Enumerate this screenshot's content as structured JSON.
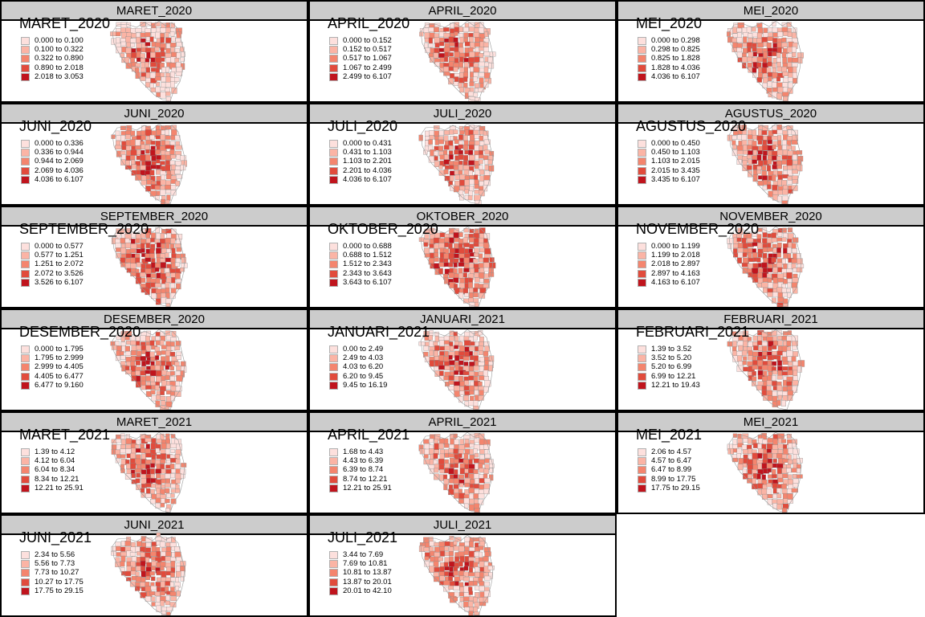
{
  "palette": [
    "#fde0dd",
    "#fbb4a5",
    "#f4856e",
    "#e14b3c",
    "#c0141d"
  ],
  "panels": [
    {
      "title": "MARET_2020",
      "map_title": "MARET_2020",
      "intensity": 0.3,
      "legend": [
        "0.000 to 0.100",
        "0.100 to 0.322",
        "0.322 to 0.890",
        "0.890 to 2.018",
        "2.018 to 3.053"
      ]
    },
    {
      "title": "APRIL_2020",
      "map_title": "APRIL_2020",
      "intensity": 0.42,
      "legend": [
        "0.000 to 0.152",
        "0.152 to 0.517",
        "0.517 to 1.067",
        "1.067 to 2.499",
        "2.499 to 6.107"
      ]
    },
    {
      "title": "MEI_2020",
      "map_title": "MEI_2020",
      "intensity": 0.4,
      "legend": [
        "0.000 to 0.298",
        "0.298 to 0.825",
        "0.825 to 1.828",
        "1.828 to 4.036",
        "4.036 to 6.107"
      ]
    },
    {
      "title": "JUNI_2020",
      "map_title": "JUNI_2020",
      "intensity": 0.42,
      "legend": [
        "0.000 to 0.336",
        "0.336 to 0.944",
        "0.944 to 2.069",
        "2.069 to 4.036",
        "4.036 to 6.107"
      ]
    },
    {
      "title": "JULI_2020",
      "map_title": "JULI_2020",
      "intensity": 0.4,
      "legend": [
        "0.000 to 0.431",
        "0.431 to 1.103",
        "1.103 to 2.201",
        "2.201 to 4.036",
        "4.036 to 6.107"
      ]
    },
    {
      "title": "AGUSTUS_2020",
      "map_title": "AGUSTUS_2020",
      "intensity": 0.48,
      "legend": [
        "0.000 to 0.450",
        "0.450 to 1.103",
        "1.103 to 2.015",
        "2.015 to 3.435",
        "3.435 to 6.107"
      ]
    },
    {
      "title": "SEPTEMBER_2020",
      "map_title": "SEPTEMBER_2020",
      "intensity": 0.58,
      "legend": [
        "0.000 to 0.577",
        "0.577 to 1.251",
        "1.251 to 2.072",
        "2.072 to 3.526",
        "3.526 to 6.107"
      ]
    },
    {
      "title": "OKTOBER_2020",
      "map_title": "OKTOBER_2020",
      "intensity": 0.66,
      "legend": [
        "0.000 to 0.688",
        "0.688 to 1.512",
        "1.512 to 2.343",
        "2.343 to 3.643",
        "3.643 to 6.107"
      ]
    },
    {
      "title": "NOVEMBER_2020",
      "map_title": "NOVEMBER_2020",
      "intensity": 0.58,
      "legend": [
        "0.000 to 1.199",
        "1.199 to 2.018",
        "2.018 to 2.897",
        "2.897 to 4.163",
        "4.163 to 6.107"
      ]
    },
    {
      "title": "DESEMBER_2020",
      "map_title": "DESEMBER_2020",
      "intensity": 0.48,
      "legend": [
        "0.000 to 1.795",
        "1.795 to 2.999",
        "2.999 to 4.405",
        "4.405 to 6.477",
        "6.477 to 9.160"
      ]
    },
    {
      "title": "JANUARI_2021",
      "map_title": "JANUARI_2021",
      "intensity": 0.46,
      "legend": [
        "0.00 to 2.49",
        "2.49 to 4.03",
        "4.03 to 6.20",
        "6.20 to 9.45",
        "9.45 to 16.19"
      ]
    },
    {
      "title": "FEBRUARI_2021",
      "map_title": "FEBRUARI_2021",
      "intensity": 0.46,
      "legend": [
        "1.39 to 3.52",
        "3.52 to 5.20",
        "5.20 to 6.99",
        "6.99 to 12.21",
        "12.21 to 19.43"
      ]
    },
    {
      "title": "MARET_2021",
      "map_title": "MARET_2021",
      "intensity": 0.46,
      "legend": [
        "1.39 to 4.12",
        "4.12 to 6.04",
        "6.04 to 8.34",
        "8.34 to 12.21",
        "12.21 to 25.91"
      ]
    },
    {
      "title": "APRIL_2021",
      "map_title": "APRIL_2021",
      "intensity": 0.46,
      "legend": [
        "1.68 to 4.43",
        "4.43 to 6.39",
        "6.39 to 8.74",
        "8.74 to 12.21",
        "12.21 to 25.91"
      ]
    },
    {
      "title": "MEI_2021",
      "map_title": "MEI_2021",
      "intensity": 0.46,
      "legend": [
        "2.06 to 4.57",
        "4.57 to 6.47",
        "6.47 to 8.99",
        "8.99 to 17.75",
        "17.75 to 29.15"
      ]
    },
    {
      "title": "JUNI_2021",
      "map_title": "JUNI_2021",
      "intensity": 0.46,
      "legend": [
        "2.34 to 5.56",
        "5.56 to 7.73",
        "7.73 to 10.27",
        "10.27 to 17.75",
        "17.75 to 29.15"
      ]
    },
    {
      "title": "JULI_2021",
      "map_title": "JULI_2021",
      "intensity": 0.46,
      "legend": [
        "3.44 to 7.69",
        "7.69 to 10.81",
        "10.81 to 13.87",
        "13.87 to 20.01",
        "20.01 to 42.10"
      ]
    }
  ]
}
